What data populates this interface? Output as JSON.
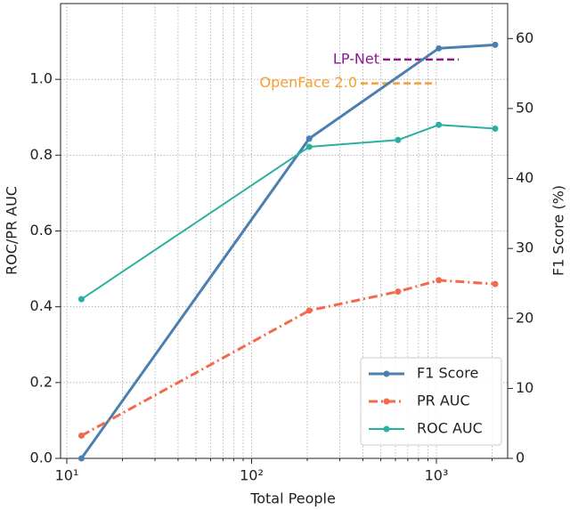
{
  "chart_data": {
    "type": "line",
    "x_label": "Total People",
    "y_label": "ROC/PR AUC",
    "y2_label": "F1 Score (%)",
    "x_scale": "log",
    "xlim": [
      9.25,
      2430
    ],
    "xticks": [
      {
        "value": 10,
        "label": "10¹"
      },
      {
        "value": 100,
        "label": "10²"
      },
      {
        "value": 1000,
        "label": "10³"
      }
    ],
    "ylim": [
      0,
      1.2
    ],
    "yticks": [
      {
        "value": 0,
        "label": "0.0"
      },
      0.2,
      0.4,
      0.6,
      0.8,
      {
        "value": 1,
        "label": "1.0"
      }
    ],
    "y2lim": [
      0,
      65
    ],
    "y2ticks": [
      0,
      10,
      20,
      30,
      40,
      50,
      60
    ],
    "grid": true,
    "legend": "lower right",
    "series": [
      {
        "name": "F1 Score",
        "color": "#4a7fb0",
        "axis": "y2",
        "x": [
          12,
          205,
          1030,
          2080
        ],
        "values": [
          0,
          45.7,
          58.6,
          59.1
        ]
      },
      {
        "name": "PR AUC",
        "color": "#f4694a",
        "x": [
          12,
          205,
          620,
          1030,
          2080
        ],
        "values": [
          0.06,
          0.39,
          0.44,
          0.47,
          0.46
        ]
      },
      {
        "name": "ROC AUC",
        "color": "#2ab0a0",
        "x": [
          12,
          205,
          620,
          1030,
          2080
        ],
        "values": [
          0.42,
          0.822,
          0.84,
          0.88,
          0.87
        ]
      }
    ],
    "annotations": [
      {
        "text": "LP-Net",
        "color": "#8b1a8b",
        "value": 57
      },
      {
        "text": "OpenFace 2.0",
        "color": "#f5a030",
        "value": 53.6
      }
    ]
  }
}
